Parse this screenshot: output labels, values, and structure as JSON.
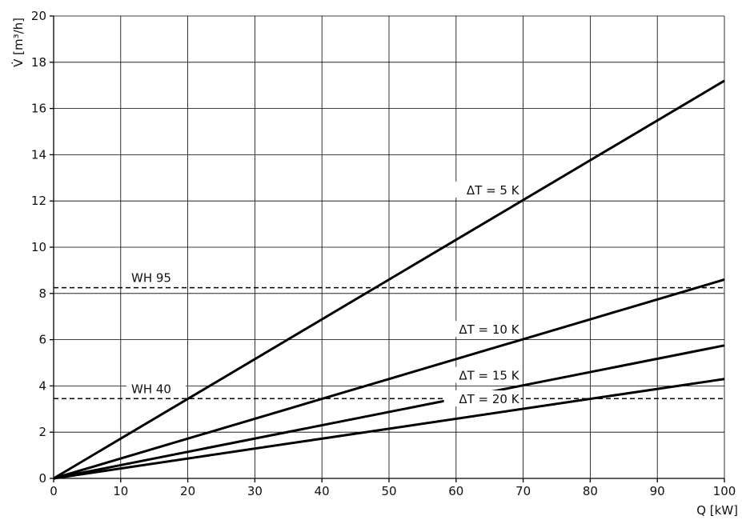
{
  "chart_data": {
    "type": "line",
    "xlabel": "Q [kW]",
    "ylabel": "V̇ [m³/h]",
    "xlim": [
      0,
      100
    ],
    "ylim": [
      0,
      20
    ],
    "x_ticks": [
      "0",
      "10",
      "20",
      "30",
      "40",
      "50",
      "60",
      "70",
      "80",
      "90",
      "100"
    ],
    "y_ticks": [
      "0",
      "2",
      "4",
      "6",
      "8",
      "10",
      "12",
      "14",
      "16",
      "18",
      "20"
    ],
    "grid": true,
    "series": [
      {
        "name": "ΔT = 5 K",
        "x": [
          0,
          100
        ],
        "y": [
          0,
          17.2
        ],
        "label_at_x": 70
      },
      {
        "name": "ΔT = 10 K",
        "x": [
          0,
          100
        ],
        "y": [
          0,
          8.6
        ],
        "label_at_x": 70
      },
      {
        "name": "ΔT = 15 K",
        "x": [
          0,
          100
        ],
        "y": [
          0,
          5.75
        ],
        "label_at_x": 70
      },
      {
        "name": "ΔT = 20 K",
        "x": [
          0,
          100
        ],
        "y": [
          0,
          4.3
        ],
        "label_at_x": 70
      }
    ],
    "reference_lines": [
      {
        "name": "WH 95",
        "y": 8.25,
        "style": "dashed"
      },
      {
        "name": "WH 40",
        "y": 3.45,
        "style": "dashed"
      }
    ]
  }
}
